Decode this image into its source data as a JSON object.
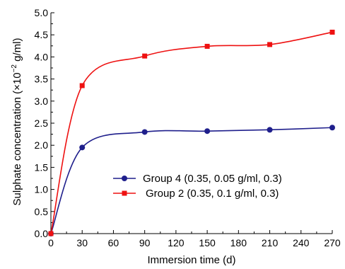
{
  "chart_data": {
    "type": "line",
    "title": "",
    "xlabel": "Immersion time (d)",
    "ylabel_main": "Sulphate concentration (×10",
    "ylabel_exp": "−2",
    "ylabel_tail": " g/ml)",
    "xlim": [
      0,
      270
    ],
    "ylim": [
      0.0,
      5.0
    ],
    "x_ticks": [
      "0",
      "30",
      "60",
      "90",
      "120",
      "150",
      "180",
      "210",
      "240",
      "270"
    ],
    "y_ticks": [
      "0.0",
      "0.5",
      "1.0",
      "1.5",
      "2.0",
      "2.5",
      "3.0",
      "3.5",
      "4.0",
      "4.5",
      "5.0"
    ],
    "grid": false,
    "legend_position": "center-right",
    "series": [
      {
        "name": "Group 4 (0.35, 0.05 g/ml, 0.3)",
        "color": "#1f1f8c",
        "marker": "circle",
        "x": [
          0,
          30,
          90,
          150,
          210,
          270
        ],
        "y": [
          0.0,
          1.95,
          2.3,
          2.32,
          2.35,
          2.4
        ]
      },
      {
        "name": "Group 2 (0.35, 0.1 g/ml, 0.3)",
        "color": "#ee1111",
        "marker": "square",
        "x": [
          0,
          30,
          90,
          150,
          210,
          270
        ],
        "y": [
          0.0,
          3.35,
          4.02,
          4.24,
          4.28,
          4.56
        ]
      }
    ]
  }
}
